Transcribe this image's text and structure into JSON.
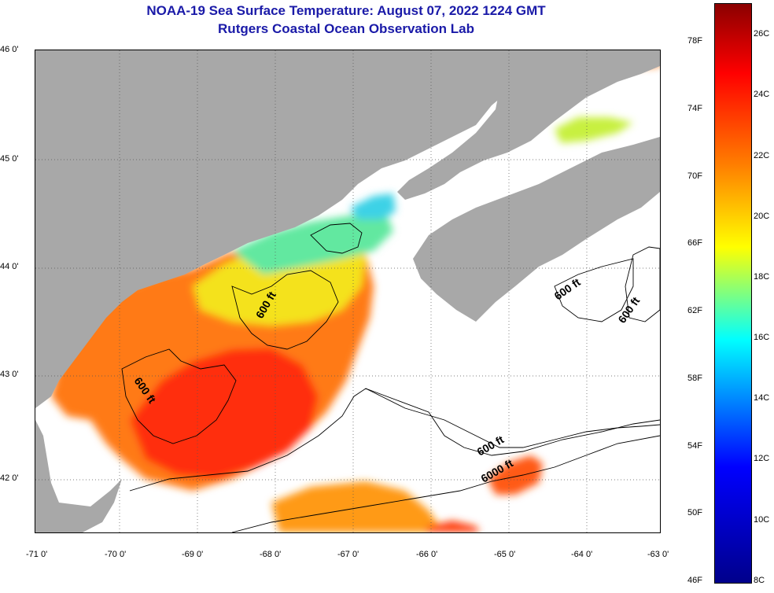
{
  "title": {
    "line1": "NOAA-19 Sea Surface Temperature:  August 07, 2022 1224 GMT",
    "line2": "Rutgers Coastal Ocean Observation Lab"
  },
  "axes": {
    "lat_labels": [
      "46 0'",
      "45 0'",
      "44 0'",
      "43 0'",
      "42 0'"
    ],
    "lon_labels": [
      "-71 0'",
      "-70 0'",
      "-69 0'",
      "-68 0'",
      "-67 0'",
      "-66 0'",
      "-65 0'",
      "-64 0'",
      "-63 0'"
    ]
  },
  "contours": {
    "labels": [
      "600 ft",
      "600 ft",
      "600 ft",
      "600 ft",
      "600 ft",
      "6000 ft"
    ]
  },
  "colorbar": {
    "fahrenheit_labels": [
      "78F",
      "74F",
      "70F",
      "66F",
      "62F",
      "58F",
      "54F",
      "50F",
      "46F"
    ],
    "celsius_labels": [
      "26C",
      "24C",
      "22C",
      "20C",
      "18C",
      "16C",
      "14C",
      "12C",
      "10C",
      "8C"
    ]
  },
  "colors": {
    "land": "#a8a8a8",
    "no_data": "#ffffff",
    "title": "#1a1aa8",
    "scale": [
      "#8b0000",
      "#ff0000",
      "#ff8000",
      "#ffff00",
      "#00ffff",
      "#0000ff",
      "#00008b"
    ]
  }
}
